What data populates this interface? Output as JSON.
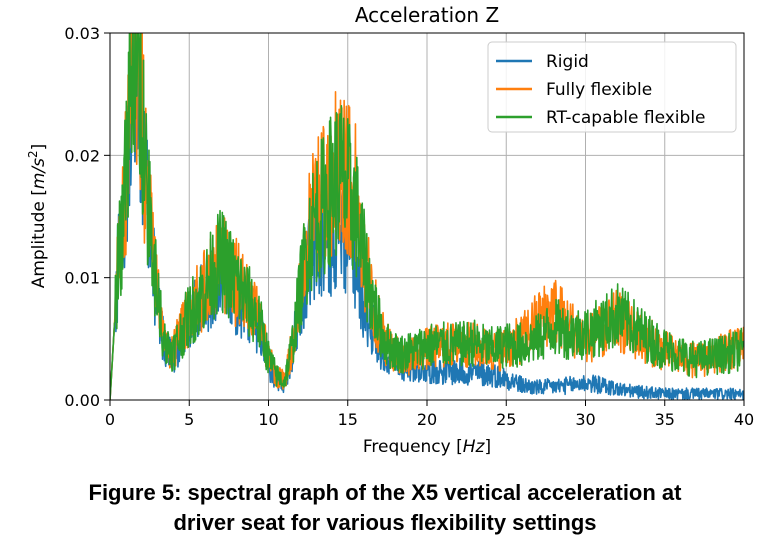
{
  "chart_data": {
    "type": "line",
    "title": "Acceleration Z",
    "xlabel": "Frequency [",
    "xlabel_unit": "Hz",
    "xlabel_close": "]",
    "ylabel": "Amplitude [",
    "ylabel_unit": "m/s",
    "ylabel_exp": "2",
    "ylabel_close": "]",
    "xlim": [
      0,
      40
    ],
    "ylim": [
      0,
      0.03
    ],
    "xticks": [
      "0",
      "5",
      "10",
      "15",
      "20",
      "25",
      "30",
      "35",
      "40"
    ],
    "yticks": [
      "0.00",
      "0.01",
      "0.02",
      "0.03"
    ],
    "grid": true,
    "legend_position": "top-right",
    "series": [
      {
        "name": "Rigid",
        "color": "#1f77b4",
        "x": [
          0,
          0.5,
          1,
          1.5,
          1.8,
          2.2,
          2.6,
          3,
          3.5,
          4,
          4.5,
          5,
          5.5,
          6,
          6.5,
          7,
          7.5,
          8,
          8.5,
          9,
          9.5,
          10,
          10.5,
          11,
          11.5,
          12,
          12.5,
          13,
          13.5,
          14,
          14.5,
          15,
          15.5,
          16,
          16.5,
          17,
          17.5,
          18,
          18.5,
          19,
          19.5,
          20,
          21,
          22,
          23,
          24,
          25,
          26,
          27,
          28,
          29,
          30,
          31,
          32,
          33,
          34,
          35,
          36,
          37,
          38,
          39,
          40
        ],
        "values": [
          0.0,
          0.011,
          0.018,
          0.03,
          0.028,
          0.018,
          0.012,
          0.008,
          0.004,
          0.0035,
          0.005,
          0.0065,
          0.0075,
          0.0085,
          0.0095,
          0.0105,
          0.0095,
          0.0085,
          0.0075,
          0.007,
          0.0055,
          0.003,
          0.0015,
          0.0013,
          0.004,
          0.008,
          0.011,
          0.012,
          0.0125,
          0.0135,
          0.0145,
          0.0135,
          0.011,
          0.008,
          0.006,
          0.0045,
          0.0035,
          0.003,
          0.0028,
          0.0027,
          0.0026,
          0.0025,
          0.0024,
          0.0023,
          0.0022,
          0.0021,
          0.0018,
          0.0012,
          0.001,
          0.0011,
          0.0012,
          0.0014,
          0.0012,
          0.0009,
          0.0007,
          0.0006,
          0.0005,
          0.0005,
          0.0005,
          0.0005,
          0.0005,
          0.0004
        ]
      },
      {
        "name": "Fully flexible",
        "color": "#ff7f0e",
        "x": [
          0,
          0.5,
          1,
          1.5,
          1.8,
          2.2,
          2.6,
          3,
          3.5,
          4,
          4.5,
          5,
          5.5,
          6,
          6.5,
          7,
          7.5,
          8,
          8.5,
          9,
          9.5,
          10,
          10.5,
          11,
          11.5,
          12,
          12.5,
          13,
          13.5,
          14,
          14.5,
          15,
          15.5,
          16,
          16.5,
          17,
          17.5,
          18,
          18.5,
          19,
          19.5,
          20,
          21,
          22,
          23,
          24,
          25,
          26,
          27,
          28,
          29,
          30,
          31,
          32,
          33,
          34,
          35,
          36,
          37,
          38,
          39,
          40
        ],
        "values": [
          0.0,
          0.011,
          0.018,
          0.03,
          0.029,
          0.019,
          0.013,
          0.0085,
          0.0045,
          0.004,
          0.0055,
          0.007,
          0.008,
          0.009,
          0.0105,
          0.012,
          0.0105,
          0.0095,
          0.0085,
          0.0075,
          0.006,
          0.0035,
          0.002,
          0.0016,
          0.0045,
          0.0095,
          0.0135,
          0.0155,
          0.0165,
          0.018,
          0.02,
          0.018,
          0.0165,
          0.012,
          0.0085,
          0.006,
          0.0045,
          0.004,
          0.0035,
          0.0035,
          0.004,
          0.0042,
          0.0045,
          0.0045,
          0.0045,
          0.004,
          0.0042,
          0.005,
          0.0065,
          0.0075,
          0.006,
          0.005,
          0.0055,
          0.0065,
          0.0055,
          0.0048,
          0.004,
          0.0035,
          0.0032,
          0.0035,
          0.004,
          0.0045
        ]
      },
      {
        "name": "RT-capable flexible",
        "color": "#2ca02c",
        "x": [
          0,
          0.5,
          1,
          1.5,
          1.8,
          2.2,
          2.6,
          3,
          3.5,
          4,
          4.5,
          5,
          5.5,
          6,
          6.5,
          7,
          7.5,
          8,
          8.5,
          9,
          9.5,
          10,
          10.5,
          11,
          11.5,
          12,
          12.5,
          13,
          13.5,
          14,
          14.5,
          15,
          15.5,
          16,
          16.5,
          17,
          17.5,
          18,
          18.5,
          19,
          19.5,
          20,
          21,
          22,
          23,
          24,
          25,
          26,
          27,
          28,
          29,
          30,
          31,
          32,
          33,
          34,
          35,
          36,
          37,
          38,
          39,
          40
        ],
        "values": [
          0.0,
          0.011,
          0.018,
          0.031,
          0.03,
          0.019,
          0.013,
          0.0085,
          0.0045,
          0.004,
          0.0055,
          0.007,
          0.008,
          0.009,
          0.0105,
          0.0115,
          0.0105,
          0.0095,
          0.0085,
          0.0075,
          0.006,
          0.0035,
          0.002,
          0.0015,
          0.0045,
          0.009,
          0.013,
          0.015,
          0.016,
          0.0175,
          0.0185,
          0.017,
          0.0155,
          0.0115,
          0.0085,
          0.006,
          0.0045,
          0.004,
          0.0038,
          0.004,
          0.0042,
          0.0045,
          0.0045,
          0.0045,
          0.0047,
          0.0042,
          0.0045,
          0.0045,
          0.005,
          0.006,
          0.0055,
          0.0055,
          0.006,
          0.007,
          0.006,
          0.005,
          0.0042,
          0.0037,
          0.0033,
          0.0036,
          0.0038,
          0.0042
        ]
      }
    ]
  },
  "caption": {
    "line1": "Figure 5: spectral graph of the X5 vertical acceleration at",
    "line2": "driver seat for various flexibility settings"
  }
}
